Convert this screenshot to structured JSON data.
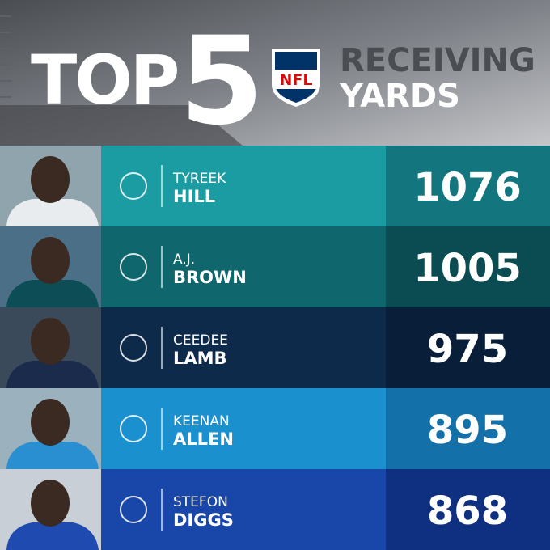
{
  "header": {
    "top": "TOP",
    "number": "5",
    "logo": "NFL",
    "line1": "RECEIVING",
    "line2": "YARDS"
  },
  "rows": [
    {
      "first": "TYREEK",
      "last": "HILL",
      "yards": 1076
    },
    {
      "first": "A.J.",
      "last": "BROWN",
      "yards": 1005
    },
    {
      "first": "CEEDEE",
      "last": "LAMB",
      "yards": 975
    },
    {
      "first": "KEENAN",
      "last": "ALLEN",
      "yards": 895
    },
    {
      "first": "STEFON",
      "last": "DIGGS",
      "yards": 868
    }
  ]
}
